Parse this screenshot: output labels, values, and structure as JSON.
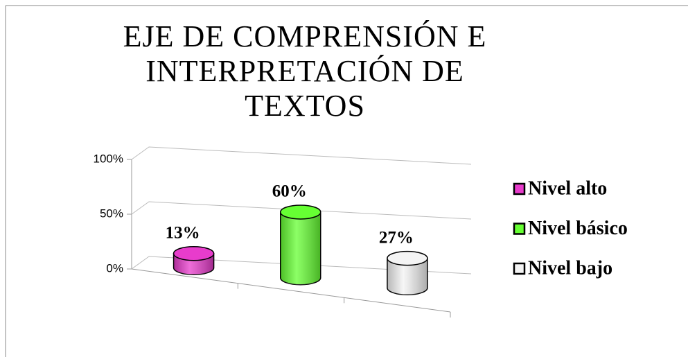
{
  "chart_data": {
    "type": "bar3d",
    "title": "EJE DE COMPRENSIÓN E INTERPRETACIÓN DE TEXTOS",
    "categories": [
      "Nivel alto",
      "Nivel básico",
      "Nivel bajo"
    ],
    "values": [
      13,
      60,
      27
    ],
    "value_labels": [
      "13%",
      "60%",
      "27%"
    ],
    "colors": [
      "#e83ccc",
      "#66ff33",
      "#f4f4f4"
    ],
    "ylim": [
      0,
      100
    ],
    "yticks": [
      {
        "value": 0,
        "label": "0%"
      },
      {
        "value": 50,
        "label": "50%"
      },
      {
        "value": 100,
        "label": "100%"
      }
    ],
    "grid": true,
    "legend": "right"
  }
}
